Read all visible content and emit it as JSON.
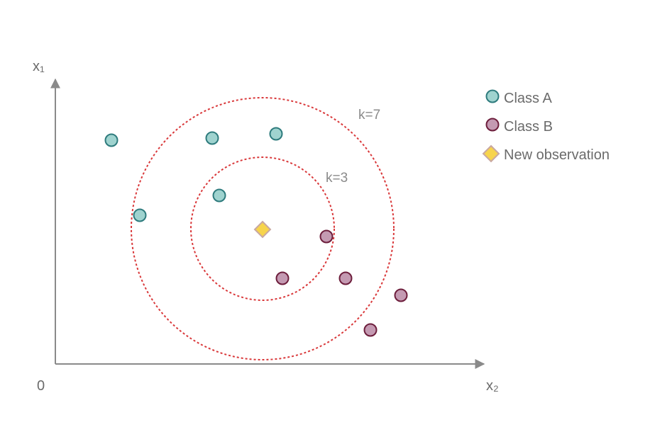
{
  "axes": {
    "y_label": "x₁",
    "x_label": "x₂",
    "origin_label": "0"
  },
  "circles": {
    "inner_label": "k=3",
    "outer_label": "k=7",
    "color": "#d9383a"
  },
  "legend": {
    "class_a": "Class A",
    "class_b": "Class B",
    "new_observation": "New observation"
  },
  "colors": {
    "class_a_fill": "#9fd3cf",
    "class_a_stroke": "#2e7b7d",
    "class_b_fill": "#c49ab2",
    "class_b_stroke": "#6d1e3c",
    "new_obs_fill": "#f7d44c",
    "new_obs_stroke": "#c9a8a0",
    "axis": "#8a8a8a"
  }
}
